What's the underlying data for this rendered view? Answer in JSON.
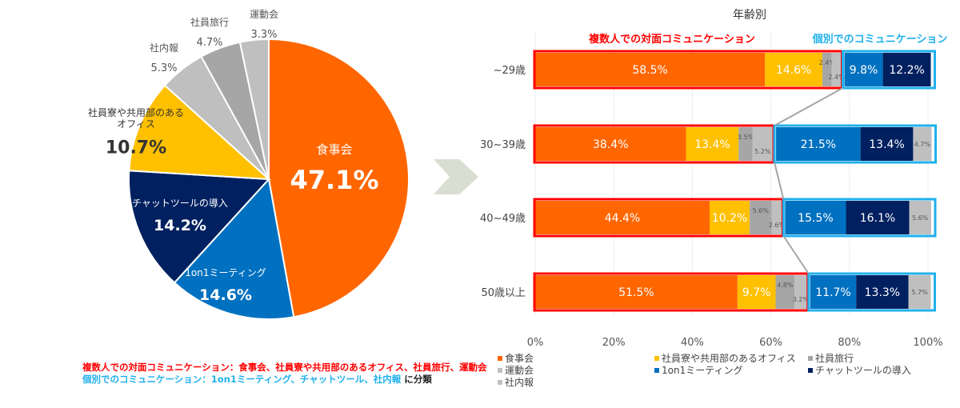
{
  "colors": {
    "食事会": "#ff6600",
    "社員寮や共用部のあるオフィス": "#ffc000",
    "社員旅行": "#a6a6a6",
    "運動会": "#bfbfbf",
    "1on1ミーティング": "#0070c0",
    "チャットツールの導入": "#002060",
    "社内報": "#bfbfbf",
    "face_to_face_box": "#ff0000",
    "individual_box": "#1fb0ec"
  },
  "chart_data": [
    {
      "type": "pie",
      "slices": [
        {
          "label": "食事会",
          "value": 47.1,
          "value_label": "47.1%"
        },
        {
          "label": "1on1ミーティング",
          "value": 14.6,
          "value_label": "14.6%"
        },
        {
          "label": "チャットツールの導入",
          "value": 14.2,
          "value_label": "14.2%"
        },
        {
          "label": "社員寮や共用部のある\nオフィス",
          "value": 10.7,
          "value_label": "10.7%"
        },
        {
          "label": "社内報",
          "value": 5.3,
          "value_label": "5.3%"
        },
        {
          "label": "社員旅行",
          "value": 4.7,
          "value_label": "4.7%"
        },
        {
          "label": "運動会",
          "value": 3.3,
          "value_label": "3.3%"
        }
      ]
    },
    {
      "type": "bar",
      "orientation": "horizontal-stacked-100",
      "title": "年齢別",
      "categories": [
        "~29歳",
        "30~39歳",
        "40~49歳",
        "50歳以上"
      ],
      "series": [
        {
          "name": "食事会",
          "values": [
            58.5,
            38.4,
            44.4,
            51.5
          ]
        },
        {
          "name": "社員寮や共用部のあるオフィス",
          "values": [
            14.6,
            13.4,
            10.2,
            9.7
          ]
        },
        {
          "name": "社員旅行",
          "values": [
            2.4,
            3.5,
            5.6,
            4.8
          ]
        },
        {
          "name": "運動会",
          "values": [
            2.4,
            5.2,
            2.6,
            3.2
          ]
        },
        {
          "name": "1on1ミーティング",
          "values": [
            9.8,
            21.5,
            15.5,
            11.7
          ]
        },
        {
          "name": "チャットツールの導入",
          "values": [
            12.2,
            13.4,
            16.1,
            13.3
          ]
        },
        {
          "name": "社内報",
          "values": [
            0,
            4.7,
            5.6,
            5.7
          ]
        }
      ],
      "xticks": [
        "0%",
        "20%",
        "40%",
        "60%",
        "80%",
        "100%"
      ],
      "xlim": [
        0,
        100
      ],
      "grid": true,
      "group_labels": {
        "face_to_face": "複数人での対面コミュニケーション",
        "individual": "個別でのコミュニケーション"
      },
      "legend_placement": "bottom"
    }
  ],
  "notes": {
    "line1": "複数人での対面コミュニケーション：食事会、社員寮や共用部のあるオフィス、社員旅行、運動会",
    "line2": "個別でのコミュニケーション：1on1ミーティング、チャットツール、社内報",
    "line2_suffix": " に分類"
  }
}
